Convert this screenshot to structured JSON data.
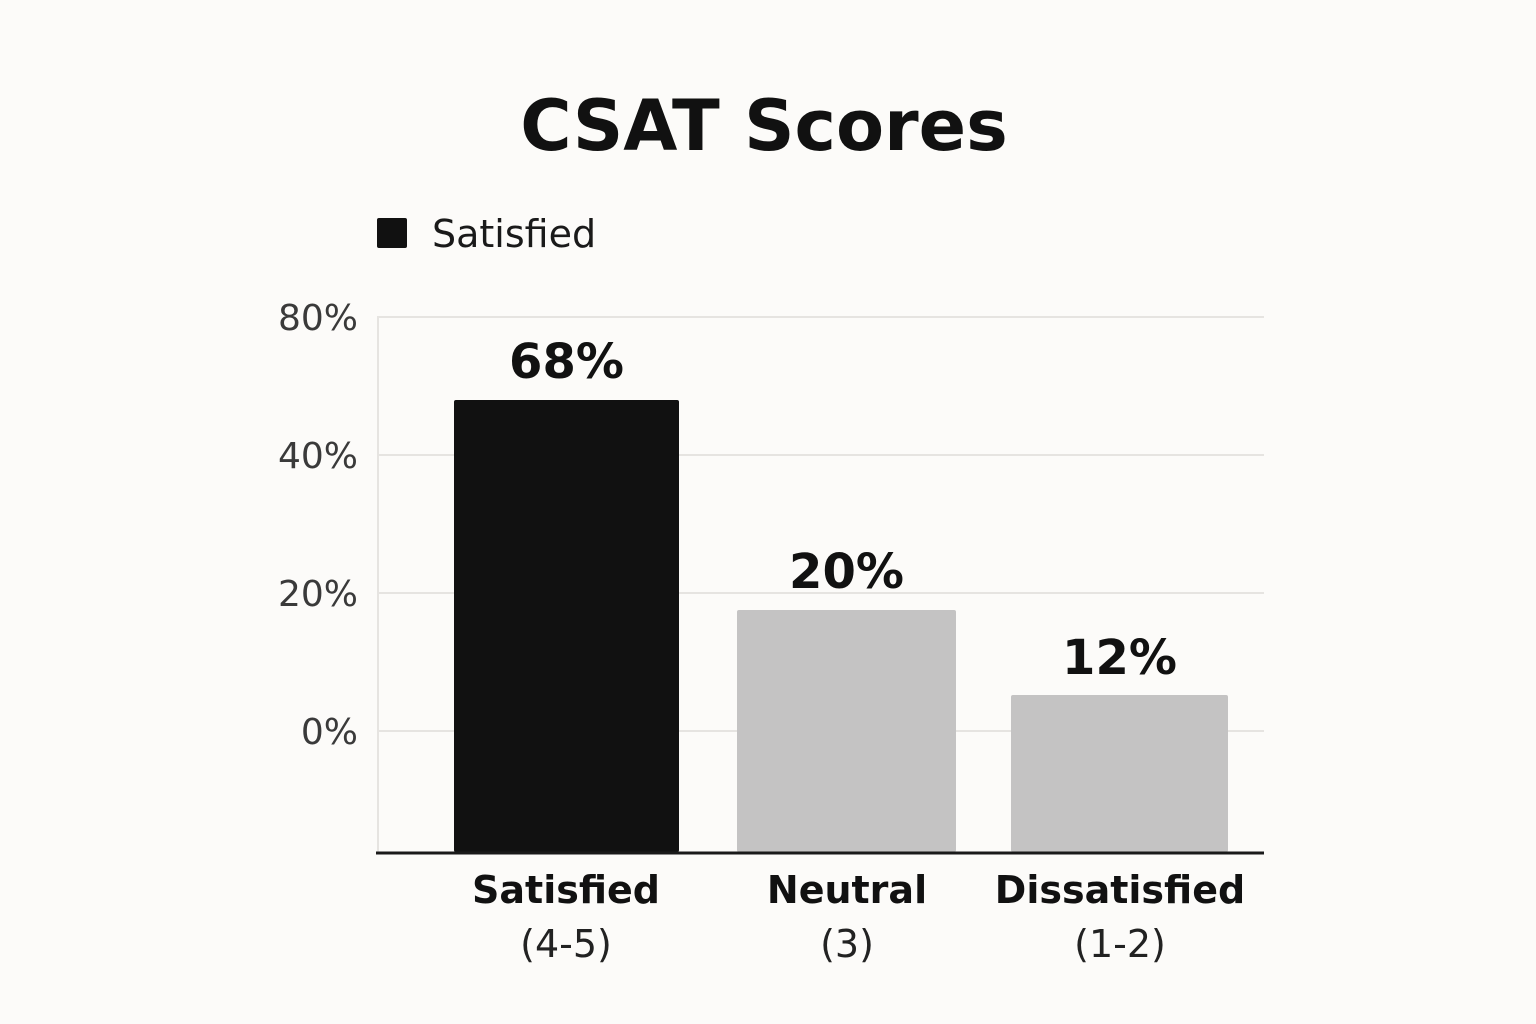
{
  "chart_data": {
    "type": "bar",
    "title": "CSAT Scores",
    "legend": {
      "position": "top-left",
      "entries": [
        {
          "label": "Satisfied",
          "color": "#111111"
        }
      ]
    },
    "categories": [
      {
        "label": "Satisfied",
        "sublabel": "(4-5)"
      },
      {
        "label": "Neutral",
        "sublabel": "(3)"
      },
      {
        "label": "Dissatisfied",
        "sublabel": "(1-2)"
      }
    ],
    "values": [
      68,
      20,
      12
    ],
    "value_labels": [
      "68%",
      "20%",
      "12%"
    ],
    "bar_colors": [
      "#111111",
      "#c4c3c3",
      "#c4c3c3"
    ],
    "yticks": [
      {
        "value": 0,
        "label": "0%"
      },
      {
        "value": 20,
        "label": "20%"
      },
      {
        "value": 40,
        "label": "40%"
      },
      {
        "value": 80,
        "label": "80%"
      }
    ],
    "grid": true,
    "colors": {
      "background": "#fcfbf9",
      "grid": "#e6e4e1",
      "axis": "#1a1a1a"
    }
  }
}
